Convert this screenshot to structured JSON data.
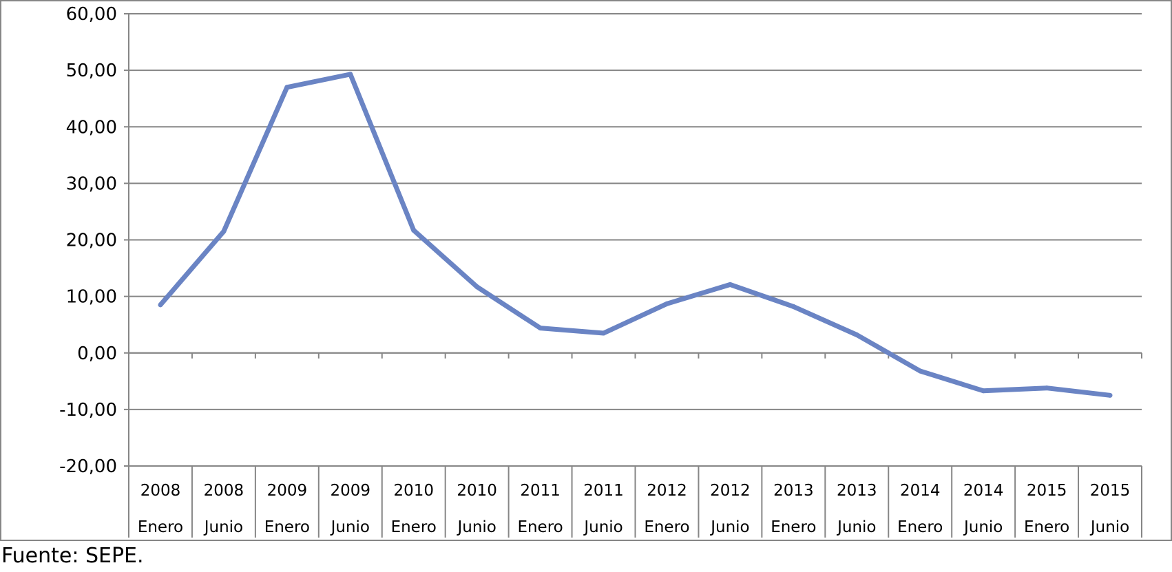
{
  "source_note": "Fuente: SEPE.",
  "colors": {
    "line": "#6a84c4",
    "grid": "#868686",
    "frame": "#868686"
  },
  "chart_data": {
    "type": "line",
    "title": "",
    "xlabel": "",
    "ylabel": "",
    "ylim": [
      -20,
      60
    ],
    "yticks": [
      "60,00",
      "50,00",
      "40,00",
      "30,00",
      "20,00",
      "10,00",
      "0,00",
      "-10,00",
      "-20,00"
    ],
    "grid": true,
    "legend": "none",
    "categories": [
      {
        "year": "2008",
        "period": "Enero"
      },
      {
        "year": "2008",
        "period": "Junio"
      },
      {
        "year": "2009",
        "period": "Enero"
      },
      {
        "year": "2009",
        "period": "Junio"
      },
      {
        "year": "2010",
        "period": "Enero"
      },
      {
        "year": "2010",
        "period": "Junio"
      },
      {
        "year": "2011",
        "period": "Enero"
      },
      {
        "year": "2011",
        "period": "Junio"
      },
      {
        "year": "2012",
        "period": "Enero"
      },
      {
        "year": "2012",
        "period": "Junio"
      },
      {
        "year": "2013",
        "period": "Enero"
      },
      {
        "year": "2013",
        "period": "Junio"
      },
      {
        "year": "2014",
        "period": "Enero"
      },
      {
        "year": "2014",
        "period": "Junio"
      },
      {
        "year": "2015",
        "period": "Enero"
      },
      {
        "year": "2015",
        "period": "Junio"
      }
    ],
    "series": [
      {
        "values": [
          8.5,
          21.5,
          47.0,
          49.3,
          21.7,
          11.7,
          4.4,
          3.5,
          8.7,
          12.1,
          8.2,
          3.2,
          -3.2,
          -6.7,
          -6.2,
          -7.5
        ]
      }
    ]
  }
}
